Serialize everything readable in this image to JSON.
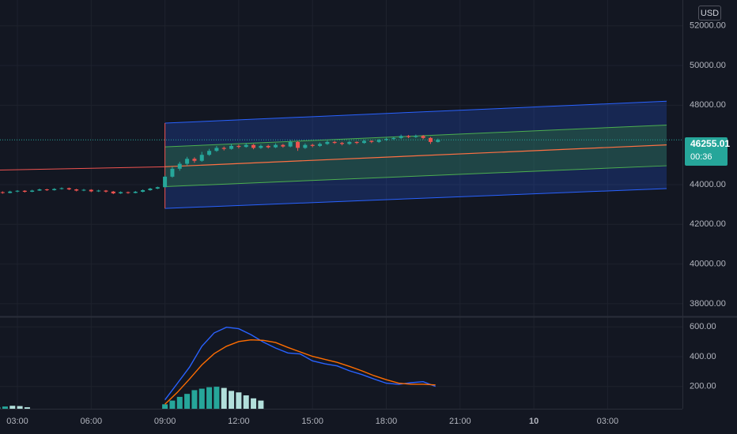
{
  "currency": "USD",
  "last_price": {
    "value": "46255.01",
    "countdown": "00:36",
    "color": "#26a69a"
  },
  "chart_data": [
    {
      "type": "candlestick",
      "title": "",
      "x_ticks": [
        "03:00",
        "06:00",
        "09:00",
        "12:00",
        "15:00",
        "18:00",
        "21:00",
        "10",
        "03:00"
      ],
      "x_ticks_hours": [
        3,
        6,
        9,
        12,
        15,
        18,
        21,
        24,
        27
      ],
      "y_ticks": [
        "52000.00",
        "50000.00",
        "48000.00",
        "44000.00",
        "42000.00",
        "40000.00",
        "38000.00"
      ],
      "y_tick_values": [
        52000,
        50000,
        48000,
        44000,
        42000,
        40000,
        38000
      ],
      "ylim": [
        37400,
        53300
      ],
      "up_color": "#26a69a",
      "down_color": "#ef5350",
      "candles": [
        [
          0.0,
          43260,
          43340,
          43200,
          43380
        ],
        [
          0.3,
          43340,
          43410,
          43310,
          43440
        ],
        [
          0.6,
          43410,
          43370,
          43340,
          43450
        ],
        [
          0.9,
          43370,
          43460,
          43350,
          43490
        ],
        [
          1.2,
          43460,
          43520,
          43430,
          43560
        ],
        [
          1.5,
          43520,
          43480,
          43440,
          43550
        ],
        [
          1.8,
          43480,
          43560,
          43460,
          43600
        ],
        [
          2.1,
          43560,
          43620,
          43530,
          43650
        ],
        [
          2.4,
          43620,
          43580,
          43540,
          43660
        ],
        [
          2.7,
          43580,
          43650,
          43560,
          43690
        ],
        [
          3.0,
          43650,
          43690,
          43610,
          43720
        ],
        [
          3.3,
          43690,
          43640,
          43600,
          43720
        ],
        [
          3.6,
          43640,
          43700,
          43620,
          43740
        ],
        [
          3.9,
          43700,
          43760,
          43680,
          43800
        ],
        [
          4.2,
          43760,
          43720,
          43680,
          43790
        ],
        [
          4.5,
          43720,
          43780,
          43700,
          43820
        ],
        [
          4.8,
          43780,
          43820,
          43750,
          43860
        ],
        [
          5.1,
          43820,
          43760,
          43720,
          43850
        ],
        [
          5.4,
          43760,
          43700,
          43660,
          43790
        ],
        [
          5.7,
          43700,
          43740,
          43670,
          43780
        ],
        [
          6.0,
          43740,
          43660,
          43620,
          43770
        ],
        [
          6.3,
          43660,
          43700,
          43630,
          43740
        ],
        [
          6.6,
          43700,
          43650,
          43600,
          43730
        ],
        [
          6.9,
          43650,
          43560,
          43520,
          43680
        ],
        [
          7.2,
          43560,
          43620,
          43530,
          43660
        ],
        [
          7.5,
          43620,
          43580,
          43540,
          43650
        ],
        [
          7.8,
          43580,
          43640,
          43560,
          43680
        ],
        [
          8.1,
          43640,
          43720,
          43610,
          43760
        ],
        [
          8.4,
          43720,
          43800,
          43690,
          43840
        ],
        [
          8.7,
          43800,
          43870,
          43770,
          43900
        ],
        [
          9.0,
          43870,
          44400,
          43850,
          44450
        ],
        [
          9.3,
          44400,
          44800,
          44350,
          44900
        ],
        [
          9.6,
          44800,
          45050,
          44700,
          45150
        ],
        [
          9.9,
          45050,
          45300,
          44950,
          45400
        ],
        [
          10.2,
          45300,
          45200,
          45100,
          45380
        ],
        [
          10.5,
          45200,
          45500,
          45150,
          45650
        ],
        [
          10.8,
          45500,
          45700,
          45450,
          45800
        ],
        [
          11.1,
          45700,
          45850,
          45650,
          45950
        ],
        [
          11.4,
          45850,
          45800,
          45720,
          45920
        ],
        [
          11.7,
          45800,
          45950,
          45760,
          46050
        ],
        [
          12.0,
          45950,
          45900,
          45820,
          46020
        ],
        [
          12.3,
          45900,
          46000,
          45860,
          46100
        ],
        [
          12.6,
          46000,
          45850,
          45780,
          46050
        ],
        [
          12.9,
          45850,
          45950,
          45800,
          46020
        ],
        [
          13.2,
          45950,
          45880,
          45820,
          46010
        ],
        [
          13.5,
          45880,
          46000,
          45840,
          46080
        ],
        [
          13.8,
          46000,
          45920,
          45860,
          46050
        ],
        [
          14.1,
          45920,
          46150,
          45880,
          46250
        ],
        [
          14.4,
          46150,
          45850,
          45700,
          46200
        ],
        [
          14.7,
          45850,
          46000,
          45800,
          46080
        ],
        [
          15.0,
          46000,
          45950,
          45880,
          46060
        ],
        [
          15.3,
          45950,
          46050,
          45900,
          46120
        ],
        [
          15.6,
          46050,
          46150,
          46000,
          46220
        ],
        [
          15.9,
          46150,
          46100,
          46050,
          46200
        ],
        [
          16.2,
          46100,
          46050,
          45980,
          46150
        ],
        [
          16.5,
          46050,
          46150,
          46000,
          46200
        ],
        [
          16.8,
          46150,
          46100,
          46040,
          46180
        ],
        [
          17.1,
          46100,
          46200,
          46060,
          46260
        ],
        [
          17.4,
          46200,
          46150,
          46090,
          46240
        ],
        [
          17.7,
          46150,
          46250,
          46100,
          46300
        ],
        [
          18.0,
          46250,
          46300,
          46200,
          46360
        ],
        [
          18.3,
          46300,
          46350,
          46250,
          46400
        ],
        [
          18.6,
          46350,
          46450,
          46300,
          46520
        ],
        [
          18.9,
          46450,
          46400,
          46340,
          46500
        ],
        [
          19.2,
          46400,
          46450,
          46350,
          46520
        ],
        [
          19.5,
          46450,
          46350,
          46280,
          46500
        ],
        [
          19.8,
          46350,
          46150,
          46050,
          46400
        ],
        [
          20.1,
          46150,
          46255,
          46120,
          46320
        ]
      ],
      "regression_channel": {
        "start_hour": 9.0,
        "end_hour": 29.4,
        "outer_upper": [
          47100,
          48200
        ],
        "inner_upper": [
          45900,
          47000
        ],
        "middle": [
          44900,
          46000
        ],
        "inner_lower": [
          43900,
          44950
        ],
        "outer_lower": [
          42800,
          43800
        ],
        "outer_fill": "#2962ff",
        "inner_fill": "#2e7d32",
        "outer_line": "#2962ff",
        "inner_line": "#4caf50",
        "middle_line": "#ff7043"
      },
      "pre_line": {
        "start_hour": 1.0,
        "end_hour": 9.0,
        "values": [
          44700,
          44900
        ],
        "color": "#ef5350"
      },
      "last_price_value": 46255.01
    },
    {
      "type": "line",
      "title": "",
      "y_ticks": [
        "600.00",
        "400.00",
        "200.00"
      ],
      "y_tick_values": [
        600,
        400,
        200
      ],
      "ylim": [
        50,
        660
      ],
      "series": [
        {
          "color": "#2962ff",
          "x": [
            9.0,
            9.5,
            10.0,
            10.5,
            11.0,
            11.5,
            12.0,
            12.5,
            13.0,
            13.5,
            14.0,
            14.5,
            15.0,
            15.5,
            16.0,
            16.5,
            17.0,
            17.5,
            18.0,
            18.5,
            19.0,
            19.5,
            20.0
          ],
          "y": [
            110,
            220,
            330,
            470,
            560,
            598,
            588,
            548,
            498,
            458,
            425,
            418,
            372,
            352,
            338,
            305,
            280,
            250,
            222,
            214,
            225,
            232,
            200
          ]
        },
        {
          "color": "#ff6d00",
          "x": [
            9.0,
            9.5,
            10.0,
            10.5,
            11.0,
            11.5,
            12.0,
            12.5,
            13.0,
            13.5,
            14.0,
            14.5,
            15.0,
            15.5,
            16.0,
            16.5,
            17.0,
            17.5,
            18.0,
            18.5,
            19.0,
            19.5,
            20.0
          ],
          "y": [
            80,
            160,
            250,
            345,
            420,
            470,
            502,
            513,
            510,
            495,
            462,
            432,
            402,
            382,
            362,
            335,
            305,
            272,
            245,
            222,
            215,
            215,
            210
          ]
        }
      ],
      "histogram": {
        "hours": [
          2.2,
          2.5,
          2.8,
          3.1,
          3.4,
          9.0,
          9.3,
          9.6,
          9.9,
          10.2,
          10.5,
          10.8,
          11.1,
          11.4,
          11.7,
          12.0,
          12.3,
          12.6,
          12.9
        ],
        "values": [
          60,
          65,
          70,
          68,
          60,
          80,
          105,
          130,
          150,
          175,
          185,
          195,
          198,
          190,
          170,
          160,
          140,
          120,
          105
        ],
        "colors": [
          "#26a69a",
          "#26a69a",
          "#b2dfdb",
          "#b2dfdb",
          "#b2dfdb",
          "#26a69a",
          "#26a69a",
          "#26a69a",
          "#26a69a",
          "#26a69a",
          "#26a69a",
          "#26a69a",
          "#26a69a",
          "#b2dfdb",
          "#b2dfdb",
          "#b2dfdb",
          "#b2dfdb",
          "#b2dfdb",
          "#b2dfdb"
        ]
      }
    }
  ]
}
